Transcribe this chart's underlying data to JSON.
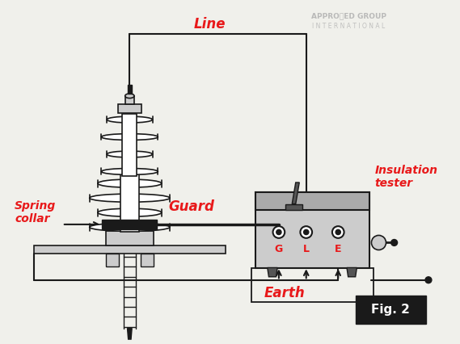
{
  "bg_color": "#f0f0eb",
  "line_color": "#1a1a1a",
  "red_color": "#e8191a",
  "black_fill": "#1a1a1a",
  "gray_fill": "#aaaaaa",
  "light_gray": "#cccccc",
  "dark_gray": "#555555",
  "white": "#ffffff",
  "labels": {
    "line": "Line",
    "guard": "Guard",
    "spring_collar": "Spring\ncollar",
    "insulation_tester": "Insulation\ntester",
    "earth": "Earth",
    "G": "G",
    "L": "L",
    "E": "E",
    "fig": "Fig. 2"
  },
  "approved_line1": "APPROⓘED GROUP",
  "approved_line2": "I N T E R N A T I O N A L",
  "fig_width": 5.69,
  "fig_height": 4.26,
  "dpi": 100
}
